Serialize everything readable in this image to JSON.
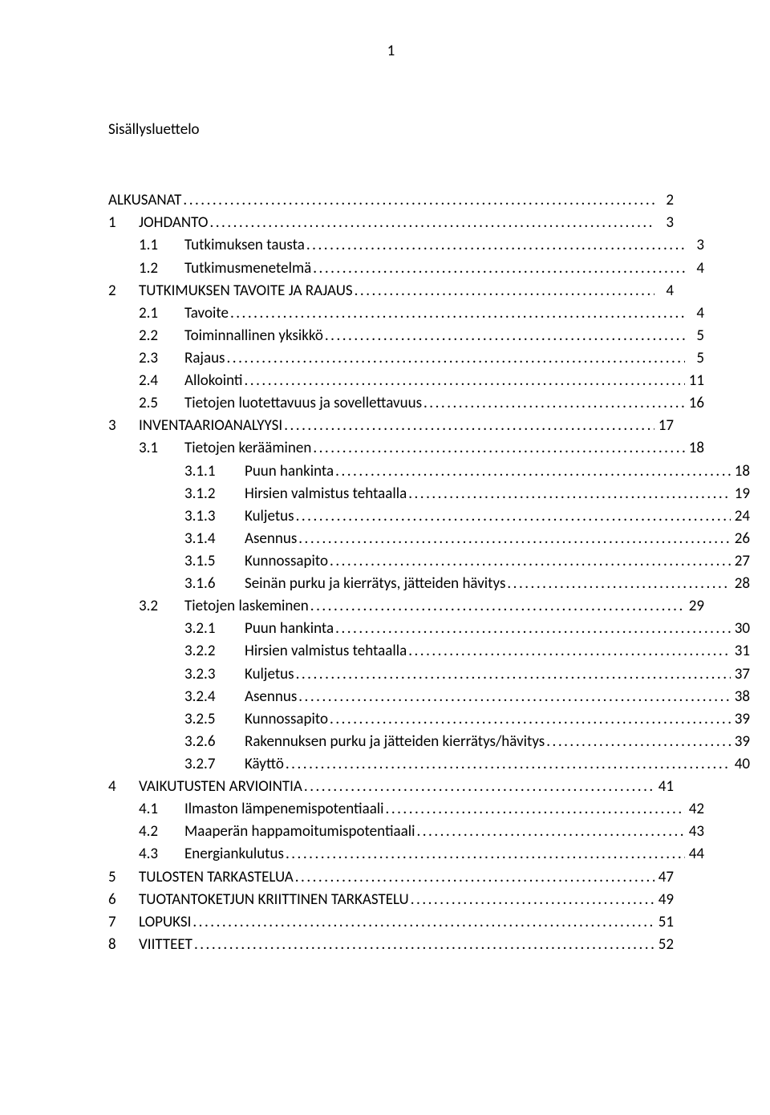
{
  "page_number": "1",
  "doc_title": "Sisällysluettelo",
  "toc_font_size_pt": 14,
  "text_color": "#000000",
  "background_color": "#ffffff",
  "entries": [
    {
      "level": 1,
      "num": "",
      "title": "ALKUSANAT",
      "page": "2"
    },
    {
      "level": 1,
      "num": "1",
      "title": "JOHDANTO",
      "page": "3"
    },
    {
      "level": 2,
      "num": "1.1",
      "title": "Tutkimuksen tausta",
      "page": "3"
    },
    {
      "level": 2,
      "num": "1.2",
      "title": "Tutkimusmenetelmä",
      "page": "4"
    },
    {
      "level": 1,
      "num": "2",
      "title": "TUTKIMUKSEN TAVOITE JA RAJAUS",
      "page": "4"
    },
    {
      "level": 2,
      "num": "2.1",
      "title": "Tavoite",
      "page": "4"
    },
    {
      "level": 2,
      "num": "2.2",
      "title": "Toiminnallinen yksikkö",
      "page": "5"
    },
    {
      "level": 2,
      "num": "2.3",
      "title": "Rajaus",
      "page": "5"
    },
    {
      "level": 2,
      "num": "2.4",
      "title": "Allokointi",
      "page": "11"
    },
    {
      "level": 2,
      "num": "2.5",
      "title": "Tietojen luotettavuus ja sovellettavuus",
      "page": "16"
    },
    {
      "level": 1,
      "num": "3",
      "title": "INVENTAARIOANALYYSI",
      "page": "17"
    },
    {
      "level": 2,
      "num": "3.1",
      "title": "Tietojen kerääminen",
      "page": "18"
    },
    {
      "level": 3,
      "num": "3.1.1",
      "title": "Puun hankinta",
      "page": "18"
    },
    {
      "level": 3,
      "num": "3.1.2",
      "title": "Hirsien valmistus tehtaalla",
      "page": "19"
    },
    {
      "level": 3,
      "num": "3.1.3",
      "title": "Kuljetus",
      "page": "24"
    },
    {
      "level": 3,
      "num": "3.1.4",
      "title": "Asennus",
      "page": "26"
    },
    {
      "level": 3,
      "num": "3.1.5",
      "title": "Kunnossapito",
      "page": "27"
    },
    {
      "level": 3,
      "num": "3.1.6",
      "title": "Seinän purku ja kierrätys, jätteiden hävitys",
      "page": "28"
    },
    {
      "level": 2,
      "num": "3.2",
      "title": "Tietojen laskeminen",
      "page": "29"
    },
    {
      "level": 3,
      "num": "3.2.1",
      "title": "Puun hankinta",
      "page": "30"
    },
    {
      "level": 3,
      "num": "3.2.2",
      "title": "Hirsien valmistus tehtaalla",
      "page": "31"
    },
    {
      "level": 3,
      "num": "3.2.3",
      "title": "Kuljetus",
      "page": "37"
    },
    {
      "level": 3,
      "num": "3.2.4",
      "title": "Asennus",
      "page": "38"
    },
    {
      "level": 3,
      "num": "3.2.5",
      "title": "Kunnossapito",
      "page": "39"
    },
    {
      "level": 3,
      "num": "3.2.6",
      "title": "Rakennuksen purku ja jätteiden kierrätys/hävitys",
      "page": "39"
    },
    {
      "level": 3,
      "num": "3.2.7",
      "title": "Käyttö",
      "page": "40"
    },
    {
      "level": 1,
      "num": "4",
      "title": "VAIKUTUSTEN ARVIOINTIA",
      "page": "41"
    },
    {
      "level": 2,
      "num": "4.1",
      "title": "Ilmaston lämpenemispotentiaali",
      "page": "42"
    },
    {
      "level": 2,
      "num": "4.2",
      "title": "Maaperän happamoitumispotentiaali",
      "page": "43"
    },
    {
      "level": 2,
      "num": "4.3",
      "title": "Energiankulutus",
      "page": "44"
    },
    {
      "level": 1,
      "num": "5",
      "title": "TULOSTEN TARKASTELUA",
      "page": "47"
    },
    {
      "level": 1,
      "num": "6",
      "title": "TUOTANTOKETJUN KRIITTINEN TARKASTELU",
      "page": "49"
    },
    {
      "level": 1,
      "num": "7",
      "title": "LOPUKSI",
      "page": "51"
    },
    {
      "level": 1,
      "num": "8",
      "title": "VIITTEET",
      "page": "52"
    }
  ]
}
